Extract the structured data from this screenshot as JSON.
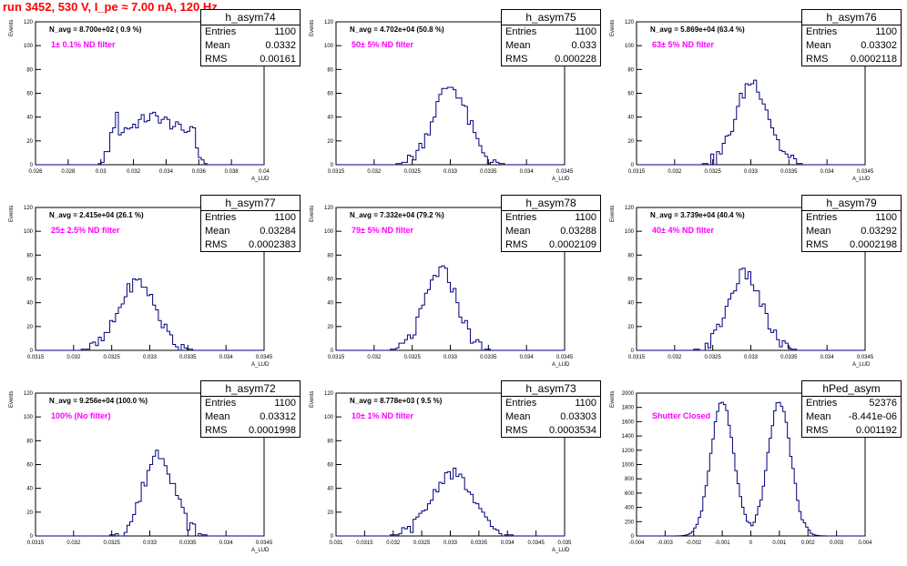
{
  "title": "run 3452,   530 V, I_pe ≈ 7.00 nA, 120 Hz",
  "colors": {
    "title": "#ff0000",
    "hist": "#000080",
    "filter_label": "#ff00ff"
  },
  "stats_labels": {
    "entries": "Entries",
    "mean": "Mean",
    "rms": "RMS"
  },
  "chart_data": [
    {
      "type": "bar",
      "name": "h_asym74",
      "n_avg": "N_avg = 8.700e+02 ( 0.9 %)",
      "filter": "1± 0.1% ND filter",
      "entries": "1100",
      "mean": "0.0332",
      "rms": "0.00161",
      "xlim": [
        0.026,
        0.04
      ],
      "ylim": [
        0,
        120
      ],
      "xticks": [
        "0.026",
        "0.028",
        "0.03",
        "0.032",
        "0.034",
        "0.036",
        "0.038",
        "0.04"
      ],
      "yticks": [
        "0",
        "20",
        "40",
        "60",
        "80",
        "100",
        "120"
      ],
      "xlabel": "A_LUD",
      "ylabel": "Events",
      "shape": {
        "type": "flat",
        "mu": 0.0332,
        "sigma": 0.00161,
        "peak": 40
      }
    },
    {
      "type": "bar",
      "name": "h_asym75",
      "n_avg": "N_avg = 4.702e+04 (50.8 %)",
      "filter": "50± 5% ND filter",
      "entries": "1100",
      "mean": "0.033",
      "rms": "0.000228",
      "xlim": [
        0.0315,
        0.0345
      ],
      "ylim": [
        0,
        120
      ],
      "xticks": [
        "0.0315",
        "0.032",
        "0.0325",
        "0.033",
        "0.0335",
        "0.034",
        "0.0345"
      ],
      "yticks": [
        "0",
        "20",
        "40",
        "60",
        "80",
        "100",
        "120"
      ],
      "xlabel": "A_LUD",
      "ylabel": "Events",
      "shape": {
        "type": "gauss",
        "mu": 0.033,
        "sigma": 0.000228,
        "peak": 66
      }
    },
    {
      "type": "bar",
      "name": "h_asym76",
      "n_avg": "N_avg = 5.869e+04 (63.4 %)",
      "filter": "63± 5% ND filter",
      "entries": "1100",
      "mean": "0.03302",
      "rms": "0.0002118",
      "xlim": [
        0.0315,
        0.0345
      ],
      "ylim": [
        0,
        120
      ],
      "xticks": [
        "0.0315",
        "0.032",
        "0.0325",
        "0.033",
        "0.0335",
        "0.034",
        "0.0345"
      ],
      "yticks": [
        "0",
        "20",
        "40",
        "60",
        "80",
        "100",
        "120"
      ],
      "xlabel": "A_LUD",
      "ylabel": "Events",
      "shape": {
        "type": "gauss",
        "mu": 0.03302,
        "sigma": 0.0002118,
        "peak": 70
      }
    },
    {
      "type": "bar",
      "name": "h_asym77",
      "n_avg": "N_avg = 2.415e+04 (26.1 %)",
      "filter": "25± 2.5% ND filter",
      "entries": "1100",
      "mean": "0.03284",
      "rms": "0.0002383",
      "xlim": [
        0.0315,
        0.0345
      ],
      "ylim": [
        0,
        120
      ],
      "xticks": [
        "0.0315",
        "0.032",
        "0.0325",
        "0.033",
        "0.0335",
        "0.034",
        "0.0345"
      ],
      "yticks": [
        "0",
        "20",
        "40",
        "60",
        "80",
        "100",
        "120"
      ],
      "xlabel": "A_LUD",
      "ylabel": "Events",
      "shape": {
        "type": "gauss",
        "mu": 0.03284,
        "sigma": 0.0002383,
        "peak": 58
      }
    },
    {
      "type": "bar",
      "name": "h_asym78",
      "n_avg": "N_avg = 7.332e+04 (79.2 %)",
      "filter": "79± 5% ND filter",
      "entries": "1100",
      "mean": "0.03288",
      "rms": "0.0002109",
      "xlim": [
        0.0315,
        0.0345
      ],
      "ylim": [
        0,
        120
      ],
      "xticks": [
        "0.0315",
        "0.032",
        "0.0325",
        "0.033",
        "0.0335",
        "0.034",
        "0.0345"
      ],
      "yticks": [
        "0",
        "20",
        "40",
        "60",
        "80",
        "100",
        "120"
      ],
      "xlabel": "A_LUD",
      "ylabel": "Events",
      "shape": {
        "type": "gauss",
        "mu": 0.03288,
        "sigma": 0.0002109,
        "peak": 67
      }
    },
    {
      "type": "bar",
      "name": "h_asym79",
      "n_avg": "N_avg = 3.739e+04 (40.4 %)",
      "filter": "40± 4% ND filter",
      "entries": "1100",
      "mean": "0.03292",
      "rms": "0.0002198",
      "xlim": [
        0.0315,
        0.0345
      ],
      "ylim": [
        0,
        120
      ],
      "xticks": [
        "0.0315",
        "0.032",
        "0.0325",
        "0.033",
        "0.0335",
        "0.034",
        "0.0345"
      ],
      "yticks": [
        "0",
        "20",
        "40",
        "60",
        "80",
        "100",
        "120"
      ],
      "xlabel": "A_LUD",
      "ylabel": "Events",
      "shape": {
        "type": "gauss",
        "mu": 0.03292,
        "sigma": 0.0002198,
        "peak": 64
      }
    },
    {
      "type": "bar",
      "name": "h_asym72",
      "n_avg": "N_avg = 9.256e+04 (100.0 %)",
      "filter": "100% (No filter)",
      "entries": "1100",
      "mean": "0.03312",
      "rms": "0.0001998",
      "xlim": [
        0.0315,
        0.0345
      ],
      "ylim": [
        0,
        120
      ],
      "xticks": [
        "0.0315",
        "0.032",
        "0.0325",
        "0.033",
        "0.0335",
        "0.034",
        "0.0345"
      ],
      "yticks": [
        "0",
        "20",
        "40",
        "60",
        "80",
        "100",
        "120"
      ],
      "xlabel": "A_LUD",
      "ylabel": "Events",
      "shape": {
        "type": "gauss",
        "mu": 0.03312,
        "sigma": 0.0001998,
        "peak": 70
      }
    },
    {
      "type": "bar",
      "name": "h_asym73",
      "n_avg": "N_avg = 8.778e+03 ( 9.5 %)",
      "filter": "10± 1% ND filter",
      "entries": "1100",
      "mean": "0.03303",
      "rms": "0.0003534",
      "xlim": [
        0.031,
        0.035
      ],
      "ylim": [
        0,
        120
      ],
      "xticks": [
        "0.031",
        "0.0315",
        "0.032",
        "0.0325",
        "0.033",
        "0.0335",
        "0.034",
        "0.0345",
        "0.035"
      ],
      "yticks": [
        "0",
        "20",
        "40",
        "60",
        "80",
        "100",
        "120"
      ],
      "xlabel": "A_LUD",
      "ylabel": "Events",
      "shape": {
        "type": "gauss",
        "mu": 0.03303,
        "sigma": 0.0003534,
        "peak": 53
      }
    },
    {
      "type": "bar",
      "name": "hPed_asym",
      "n_avg": "",
      "filter": "Shutter Closed",
      "entries": "52376",
      "mean": "-8.441e-06",
      "rms": "0.001192",
      "xlim": [
        -0.004,
        0.004
      ],
      "ylim": [
        0,
        2000
      ],
      "xticks": [
        "-0.004",
        "-0.003",
        "-0.002",
        "-0.001",
        "0",
        "0.001",
        "0.002",
        "0.003",
        "0.004"
      ],
      "yticks": [
        "0",
        "200",
        "400",
        "600",
        "800",
        "1000",
        "1200",
        "1400",
        "1600",
        "1800",
        "2000"
      ],
      "xlabel": "",
      "ylabel": "Events",
      "shape": {
        "type": "double",
        "mu": 0.001,
        "sigma": 0.0004,
        "peak": 1880
      }
    }
  ]
}
